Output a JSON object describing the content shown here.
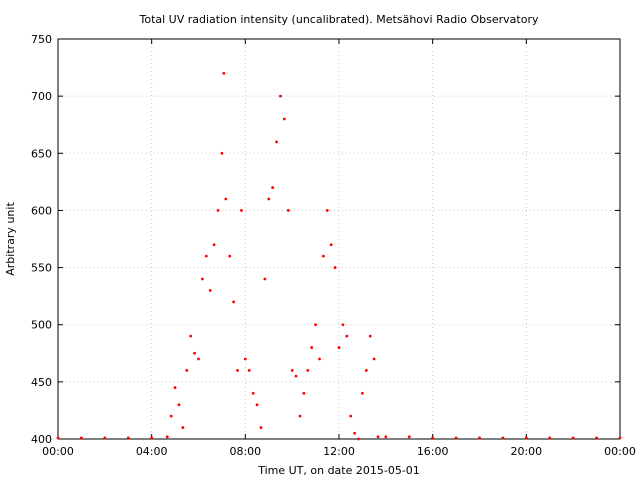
{
  "chart_data": {
    "type": "scatter",
    "title": "Total UV radiation intensity (uncalibrated). Metsähovi Radio Observatory",
    "xlabel": "Time UT, on date 2015-05-01",
    "ylabel": "Arbitrary unit",
    "xlim": [
      "00:00",
      "24:00"
    ],
    "ylim": [
      400,
      750
    ],
    "x_ticks": [
      "00:00",
      "04:00",
      "08:00",
      "12:00",
      "16:00",
      "20:00",
      "00:00"
    ],
    "y_ticks": [
      400,
      450,
      500,
      550,
      600,
      650,
      700,
      750
    ],
    "grid": true,
    "legend": "none",
    "marker_color": "#ff0000",
    "series": [
      {
        "x": [
          "00:00",
          "01:00",
          "02:00",
          "03:00",
          "04:00",
          "04:40",
          "04:50",
          "05:00",
          "05:10",
          "05:20",
          "05:30",
          "05:40",
          "05:50",
          "06:00",
          "06:10",
          "06:20",
          "06:30",
          "06:40",
          "06:50",
          "07:00",
          "07:05",
          "07:10",
          "07:20",
          "07:30",
          "07:40",
          "07:50",
          "08:00",
          "08:10",
          "08:20",
          "08:30",
          "08:40",
          "08:50",
          "09:00",
          "09:10",
          "09:20",
          "09:30",
          "09:40",
          "09:50",
          "10:00",
          "10:10",
          "10:20",
          "10:30",
          "10:40",
          "10:50",
          "11:00",
          "11:10",
          "11:20",
          "11:30",
          "11:40",
          "11:50",
          "12:00",
          "12:10",
          "12:20",
          "12:30",
          "12:40",
          "12:50",
          "13:00",
          "13:10",
          "13:20",
          "13:30",
          "13:40",
          "14:00",
          "15:00",
          "16:00",
          "17:00",
          "18:00",
          "19:00",
          "20:00",
          "21:00",
          "22:00",
          "23:00",
          "24:00"
        ],
        "y": [
          401,
          401,
          401,
          401,
          401,
          402,
          420,
          445,
          430,
          410,
          460,
          490,
          475,
          470,
          540,
          560,
          530,
          570,
          600,
          650,
          720,
          610,
          560,
          520,
          460,
          600,
          470,
          460,
          440,
          430,
          410,
          540,
          610,
          620,
          660,
          700,
          680,
          600,
          460,
          455,
          420,
          440,
          460,
          480,
          500,
          470,
          560,
          600,
          570,
          550,
          480,
          500,
          490,
          420,
          405,
          400,
          440,
          460,
          490,
          470,
          402,
          402,
          402,
          401,
          401,
          401,
          401,
          401,
          401,
          401,
          401,
          401
        ]
      }
    ]
  }
}
